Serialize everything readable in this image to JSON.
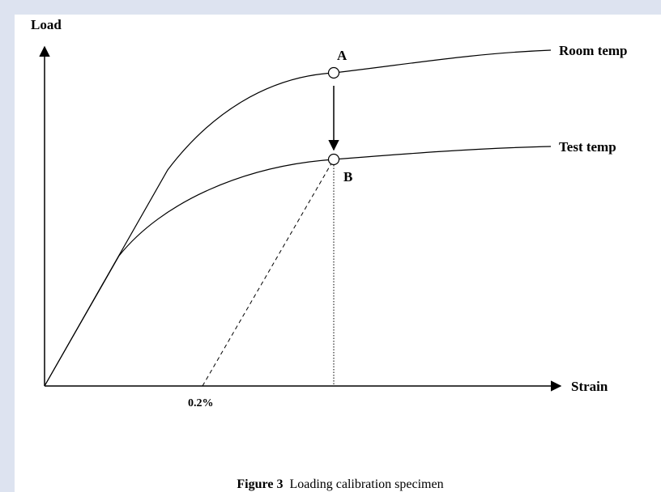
{
  "figure": {
    "y_axis_label": "Load",
    "x_axis_label": "Strain",
    "curves": [
      {
        "label": "Room temp",
        "point": "A"
      },
      {
        "label": "Test temp",
        "point": "B"
      }
    ],
    "offset_label": "0.2%",
    "caption": {
      "number": "Figure 3",
      "text": "Loading calibration specimen"
    }
  }
}
